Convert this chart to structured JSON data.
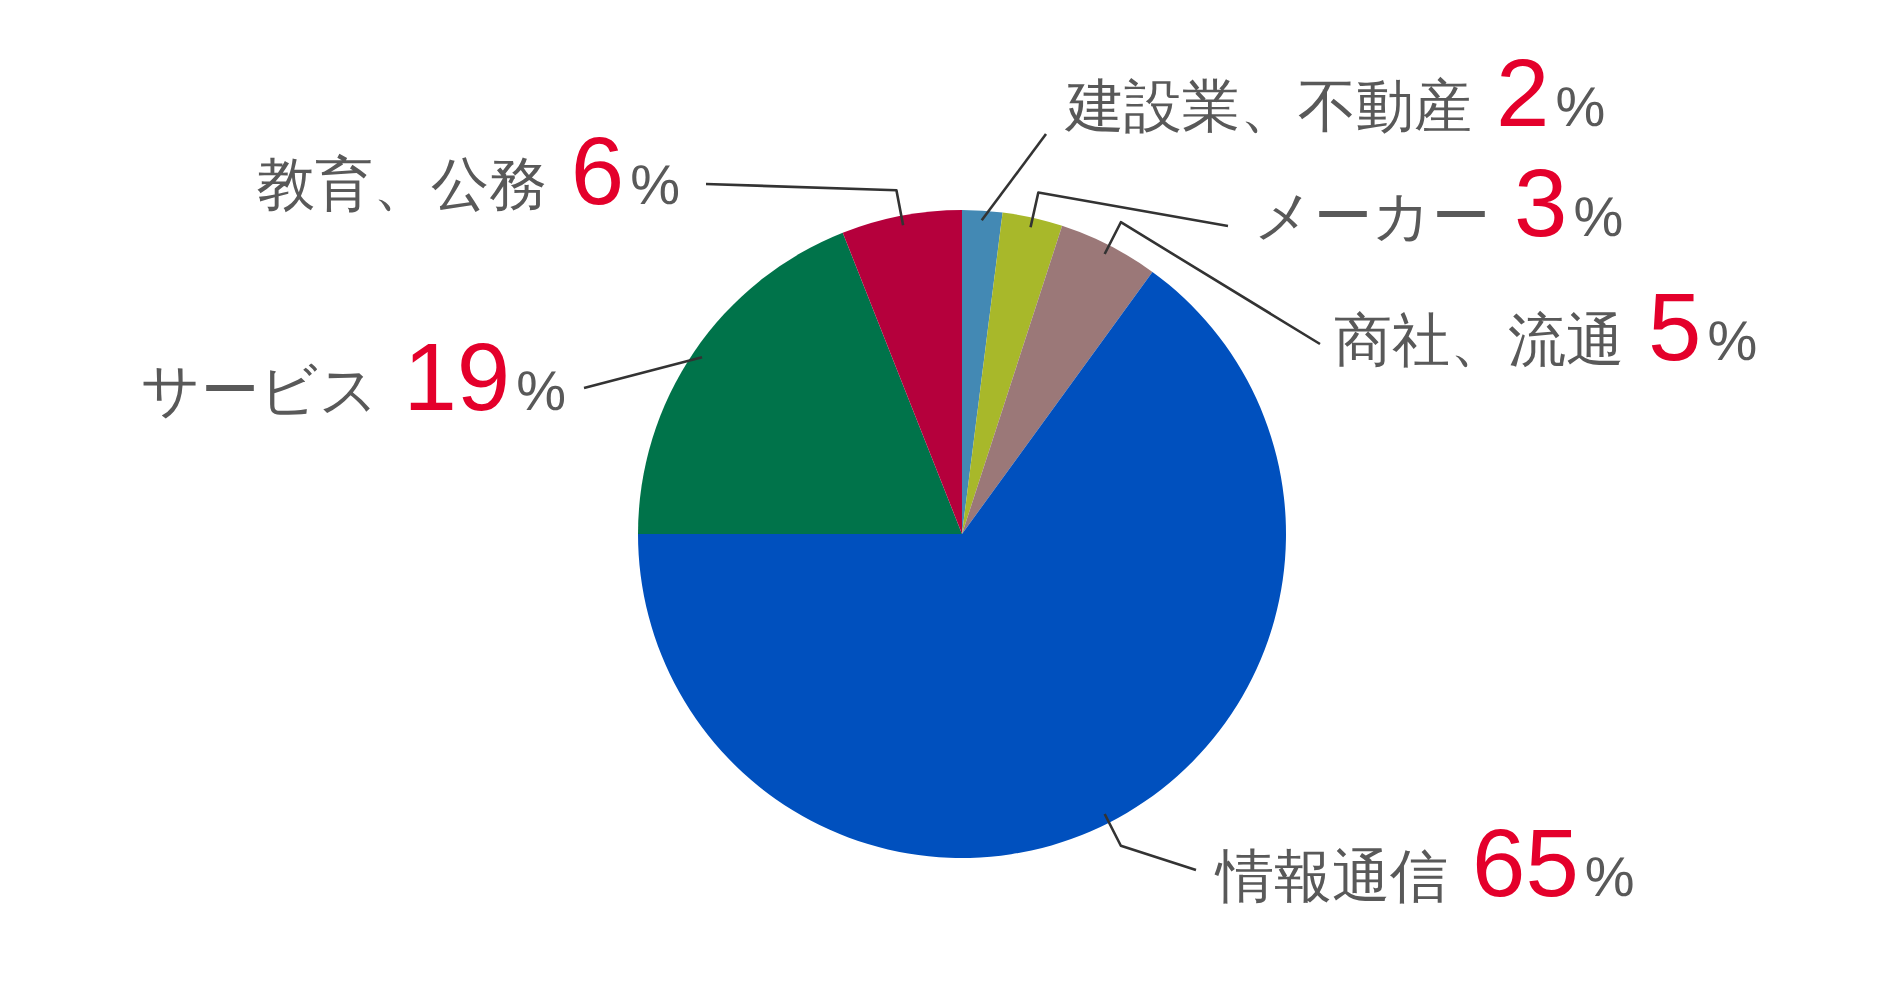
{
  "chart_data": {
    "type": "pie",
    "categories": [
      "建設業、不動産",
      "メーカー",
      "商社、流通",
      "情報通信",
      "サービス",
      "教育、公務"
    ],
    "values": [
      2,
      3,
      5,
      65,
      19,
      6
    ],
    "colors": [
      "#4389b4",
      "#a8b82a",
      "#9b7878",
      "#0050be",
      "#00734a",
      "#b5003c"
    ],
    "value_labels": [
      "2%",
      "3%",
      "5%",
      "65%",
      "19%",
      "6%"
    ]
  }
}
